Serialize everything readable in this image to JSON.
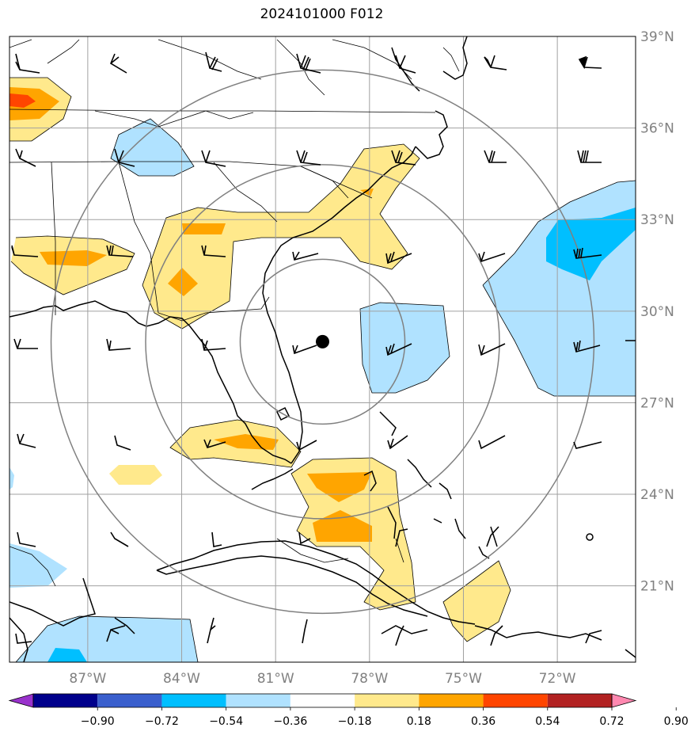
{
  "title": "2024101000 F012",
  "map": {
    "lon_range": [
      -89.5,
      -69.5
    ],
    "lat_range": [
      18.5,
      39.0
    ],
    "lat_ticks": [
      {
        "value": 39,
        "label": "39°N"
      },
      {
        "value": 36,
        "label": "36°N"
      },
      {
        "value": 33,
        "label": "33°N"
      },
      {
        "value": 30,
        "label": "30°N"
      },
      {
        "value": 27,
        "label": "27°N"
      },
      {
        "value": 24,
        "label": "24°N"
      },
      {
        "value": 21,
        "label": "21°N"
      }
    ],
    "lon_ticks": [
      {
        "value": -87,
        "label": "87°W"
      },
      {
        "value": -84,
        "label": "84°W"
      },
      {
        "value": -81,
        "label": "81°W"
      },
      {
        "value": -78,
        "label": "78°W"
      },
      {
        "value": -75,
        "label": "75°W"
      },
      {
        "value": -72,
        "label": "72°W"
      }
    ],
    "storm_center": {
      "lon": -79.5,
      "lat": 29.0
    },
    "range_rings_deg": [
      2.7,
      5.8,
      8.9
    ]
  },
  "colorbar": {
    "colors": [
      "#9932CC",
      "#00008B",
      "#3A5FCD",
      "#00BFFF",
      "#B0E2FF",
      "#FFFFFF",
      "#FFE98C",
      "#FFA500",
      "#FF4500",
      "#B22222",
      "#FF88B0"
    ],
    "boundaries": [
      "−0.90",
      "−0.72",
      "−0.54",
      "−0.36",
      "−0.18",
      "0.18",
      "0.36",
      "0.54",
      "0.72",
      "0.90"
    ]
  },
  "colors": {
    "light_yellow": "#FFE98C",
    "orange": "#FFA500",
    "red_orange": "#FF4500",
    "light_blue": "#B0E2FF",
    "deep_sky_blue": "#00BFFF",
    "grid": "#a0a0a0",
    "ring": "#808080"
  }
}
